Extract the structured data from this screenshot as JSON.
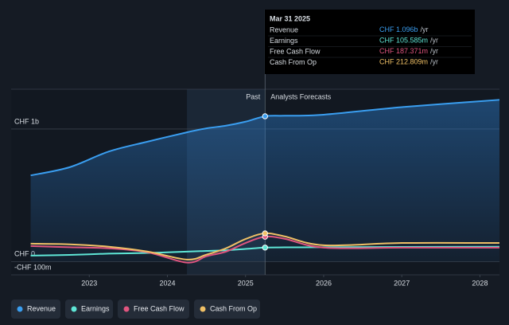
{
  "chart_data": {
    "type": "line",
    "x": [
      2022.25,
      2022.75,
      2023.25,
      2023.75,
      2024.25,
      2024.5,
      2024.75,
      2025.0,
      2025.25,
      2025.5,
      2026.0,
      2027.0,
      2028.25
    ],
    "series": [
      {
        "name": "Revenue",
        "color": "#3a9ef0",
        "values": [
          650,
          712,
          830,
          905,
          975,
          1005,
          1025,
          1055,
          1096,
          1100,
          1108,
          1165,
          1220
        ]
      },
      {
        "name": "Earnings",
        "color": "#5fe6d6",
        "values": [
          45,
          50,
          60,
          65,
          75,
          80,
          85,
          95,
          105.585,
          107,
          108,
          110,
          112
        ]
      },
      {
        "name": "Free Cash Flow",
        "color": "#e0557f",
        "values": [
          117,
          108,
          100,
          70,
          -8,
          40,
          75,
          140,
          187.371,
          172,
          105,
          105,
          105
        ]
      },
      {
        "name": "Cash From Op",
        "color": "#f0c066",
        "values": [
          135,
          130,
          112,
          75,
          15,
          52,
          100,
          170,
          212.809,
          190,
          123,
          140,
          140
        ]
      }
    ],
    "xlim": [
      2022.0,
      2028.25
    ],
    "xticks": [
      2023,
      2024,
      2025,
      2026,
      2027,
      2028
    ],
    "ylim": [
      -100,
      1300
    ],
    "yticks": [
      {
        "value": 1000,
        "label": "CHF 1b"
      },
      {
        "value": 0,
        "label": "CHF 0"
      },
      {
        "value": -100,
        "label": "-CHF 100m"
      }
    ],
    "past_shade_start": 2024.25,
    "forecast_start": 2025.25,
    "past_label": "Past",
    "forecast_label": "Analysts Forecasts",
    "tooltip": {
      "title": "Mar 31 2025",
      "rows": [
        {
          "value": "CHF 1.096b",
          "unit": "/yr"
        },
        {
          "value": "CHF 105.585m",
          "unit": "/yr"
        },
        {
          "value": "CHF 187.371m",
          "unit": "/yr"
        },
        {
          "value": "CHF 212.809m",
          "unit": "/yr"
        }
      ]
    },
    "grid": true
  }
}
